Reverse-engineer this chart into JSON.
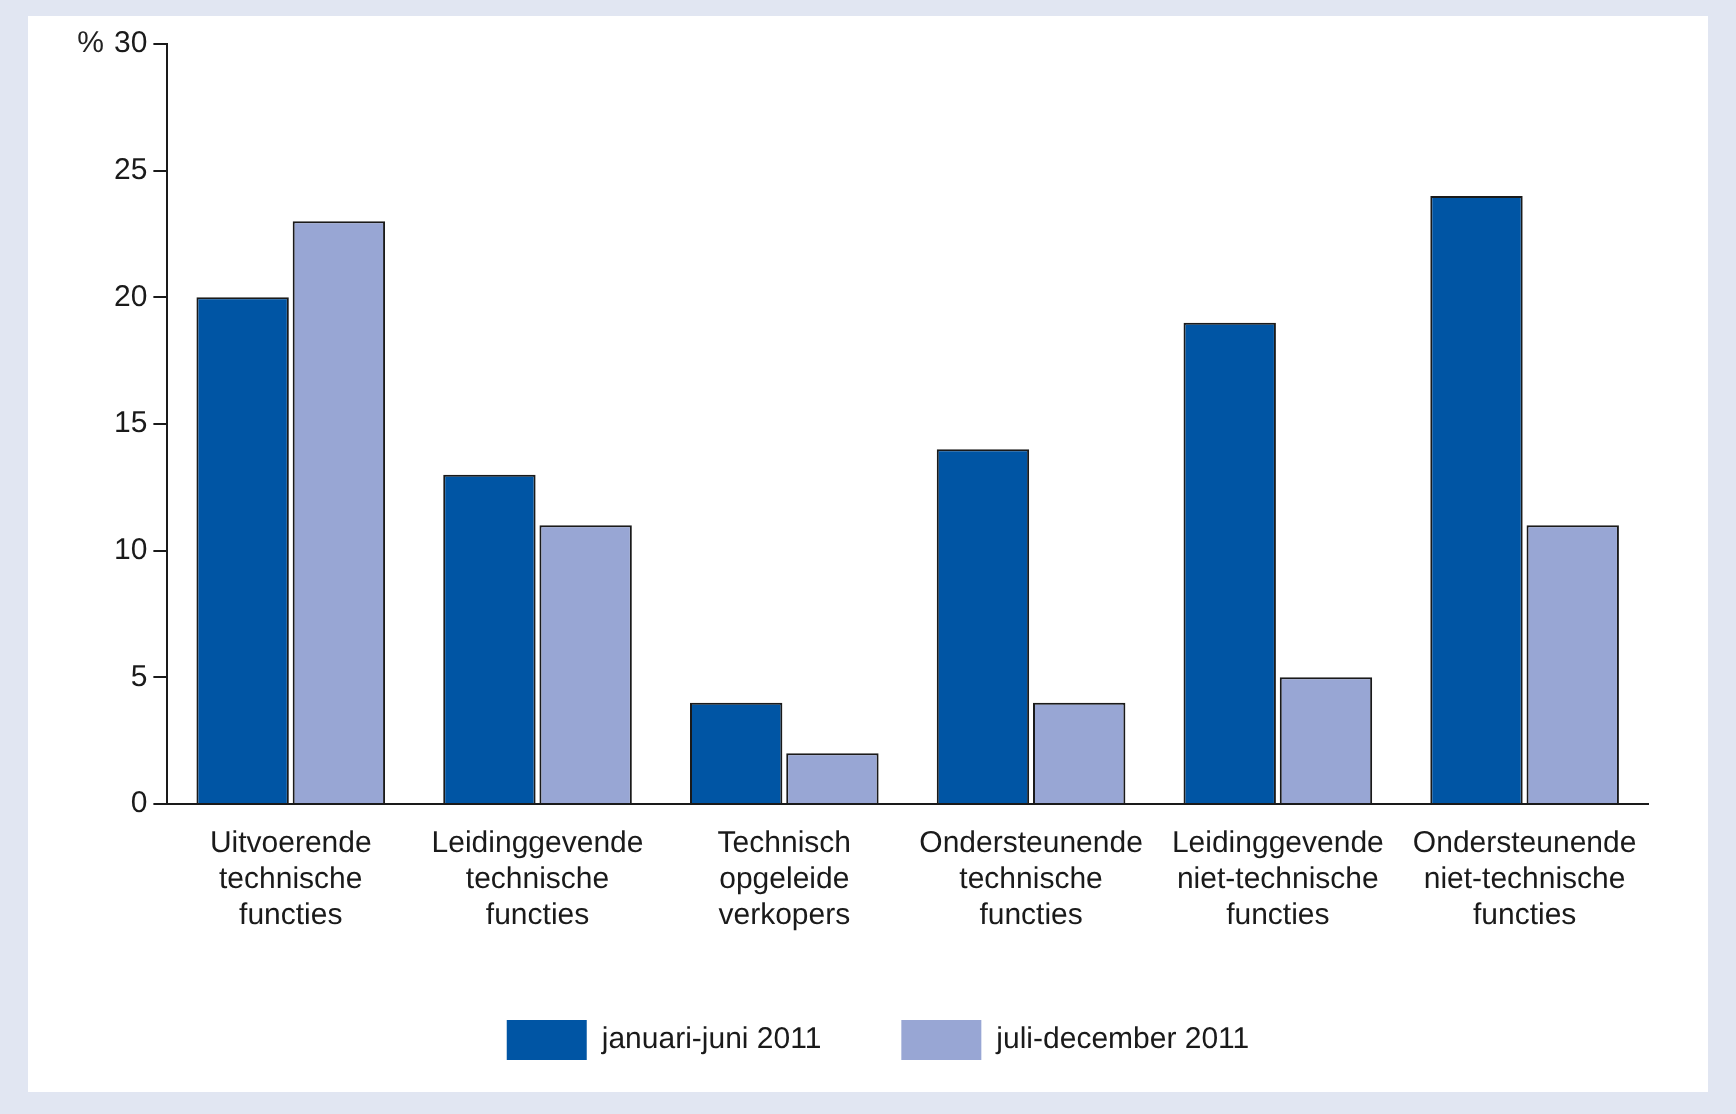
{
  "chart_data": {
    "type": "bar",
    "ylabel": "%",
    "categories": [
      "Uitvoerende technische functies",
      "Leidinggevende technische functies",
      "Technisch opgeleide verkopers",
      "Ondersteunende technische functies",
      "Leidinggevende niet-technische functies",
      "Ondersteunende niet-technische functies"
    ],
    "series": [
      {
        "name": "januari-juni 2011",
        "color": "#0055a4",
        "values": [
          20,
          13,
          4,
          14,
          19,
          24
        ]
      },
      {
        "name": "juli-december 2011",
        "color": "#98a6d4",
        "values": [
          23,
          11,
          2,
          4,
          5,
          11
        ]
      }
    ],
    "ylim": [
      0,
      30
    ],
    "yticks": [
      0,
      5,
      10,
      15,
      20,
      25,
      30
    ],
    "grid": false,
    "legend": "bottom"
  }
}
